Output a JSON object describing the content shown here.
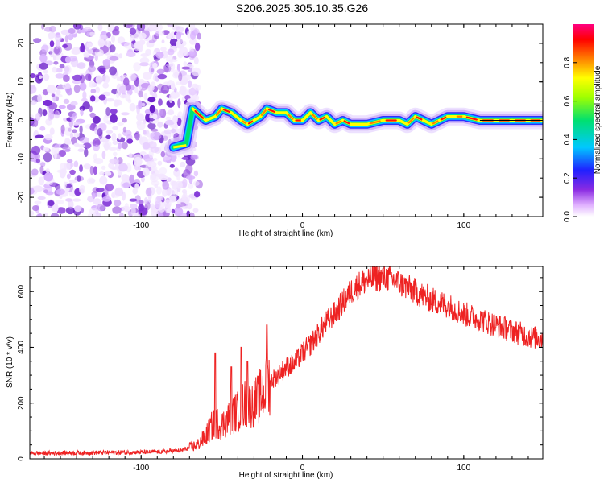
{
  "title": "S206.2025.305.10.35.G26",
  "chart_data": [
    {
      "type": "heatmap",
      "name": "spectrogram",
      "xlabel": "Height of straight line (km)",
      "ylabel": "Frequency (Hz)",
      "xlim": [
        -169,
        149
      ],
      "ylim": [
        -25,
        25
      ],
      "x_ticks": [
        -100,
        0,
        100
      ],
      "x_tick_labels": [
        "-100",
        "0",
        "100"
      ],
      "y_ticks": [
        -20,
        -10,
        0,
        10,
        20
      ],
      "y_tick_labels": [
        "-20",
        "-10",
        "0",
        "10",
        "20"
      ],
      "noise_region_x": [
        -169,
        -70
      ],
      "ridge": {
        "x": [
          -80,
          -72,
          -68,
          -60,
          -54,
          -50,
          -44,
          -38,
          -34,
          -30,
          -26,
          -22,
          -16,
          -10,
          -5,
          0,
          5,
          10,
          15,
          20,
          25,
          30,
          40,
          50,
          60,
          65,
          70,
          75,
          80,
          85,
          90,
          95,
          100,
          110,
          120,
          130,
          140,
          149
        ],
        "y": [
          -7,
          -6,
          3,
          0,
          1,
          3,
          2,
          0,
          -1,
          0,
          1,
          3,
          2,
          2,
          0,
          0,
          2,
          0,
          1,
          -1,
          0,
          -1,
          -1,
          0,
          0,
          -1,
          1,
          0,
          -1,
          0,
          1,
          1,
          1,
          0,
          0,
          0,
          0,
          0
        ],
        "peak_amplitude": 0.95
      },
      "colorbar": {
        "label": "Normalized spectral amplitude",
        "range": [
          0,
          1
        ],
        "ticks": [
          0.0,
          0.2,
          0.4,
          0.6,
          0.8
        ],
        "tick_labels": [
          "0.0",
          "0.2",
          "0.4",
          "0.6",
          "0.8"
        ]
      }
    },
    {
      "type": "line",
      "name": "snr",
      "xlabel": "Height of straight line (km)",
      "ylabel": "SNR (10 * v/v)",
      "xlim": [
        -169,
        149
      ],
      "ylim": [
        0,
        690
      ],
      "x_ticks": [
        -100,
        0,
        100
      ],
      "x_tick_labels": [
        "-100",
        "0",
        "100"
      ],
      "y_ticks": [
        0,
        200,
        400,
        600
      ],
      "y_tick_labels": [
        "0",
        "200",
        "400",
        "600"
      ],
      "series": [
        {
          "name": "SNR",
          "color": "#ee2222",
          "x": [
            -169,
            -150,
            -130,
            -110,
            -90,
            -75,
            -65,
            -60,
            -56,
            -53,
            -50,
            -45,
            -40,
            -36,
            -32,
            -28,
            -24,
            -20,
            -15,
            -10,
            -5,
            0,
            5,
            10,
            15,
            20,
            25,
            30,
            35,
            40,
            45,
            50,
            55,
            60,
            70,
            80,
            90,
            100,
            110,
            120,
            130,
            140,
            149
          ],
          "y": [
            20,
            21,
            22,
            23,
            25,
            30,
            50,
            80,
            120,
            130,
            120,
            150,
            170,
            200,
            190,
            210,
            240,
            280,
            300,
            330,
            340,
            380,
            410,
            450,
            490,
            520,
            560,
            600,
            625,
            640,
            648,
            650,
            645,
            630,
            600,
            570,
            550,
            520,
            500,
            480,
            460,
            440,
            430
          ],
          "spikes": [
            {
              "x": -54,
              "y": 380
            },
            {
              "x": -44,
              "y": 330
            },
            {
              "x": -38,
              "y": 400
            },
            {
              "x": -34,
              "y": 350
            },
            {
              "x": -22,
              "y": 480
            }
          ]
        }
      ]
    }
  ]
}
